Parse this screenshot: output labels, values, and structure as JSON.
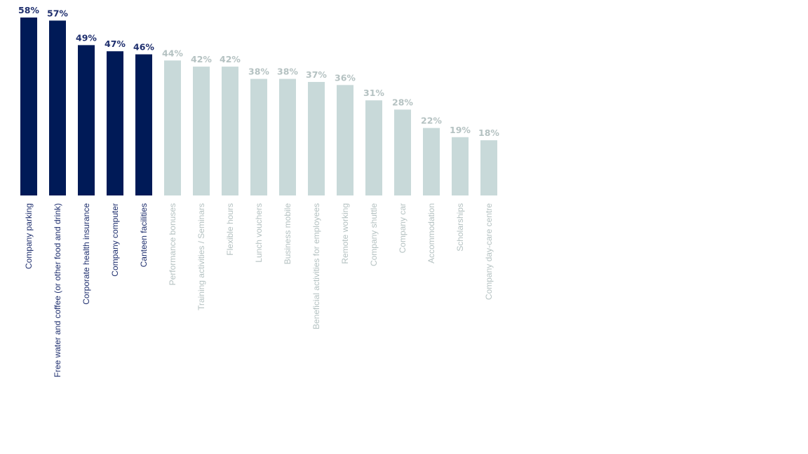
{
  "chart_data": {
    "type": "bar",
    "orientation": "vertical",
    "categories": [
      "Company parking",
      "Free water and coffee (or other food and drink)",
      "Corporate health insurance",
      "Company computer",
      "Canteen facilities",
      "Performance bonuses",
      "Training activities / Seminars",
      "Flexible hours",
      "Lunch vouchers",
      "Business mobile",
      "Beneficial activities for employees",
      "Remote working",
      "Company shuttle",
      "Company car",
      "Accommodation",
      "Scholarships",
      "Company day-care centre"
    ],
    "values": [
      58,
      57,
      49,
      47,
      46,
      44,
      42,
      42,
      38,
      38,
      37,
      36,
      31,
      28,
      22,
      19,
      18
    ],
    "value_labels": [
      "58%",
      "57%",
      "49%",
      "47%",
      "46%",
      "44%",
      "42%",
      "42%",
      "38%",
      "38%",
      "37%",
      "36%",
      "31%",
      "28%",
      "22%",
      "19%",
      "18%"
    ],
    "highlighted_count": 5,
    "ylim": [
      0,
      58
    ],
    "title": "",
    "xlabel": "",
    "ylabel": "",
    "grid": false,
    "legend": "none",
    "colors": {
      "highlight_bar": "#001a57",
      "highlight_text": "#1f2f6e",
      "other_bar": "#c8d9d9",
      "other_text": "#b5c2c2"
    }
  }
}
